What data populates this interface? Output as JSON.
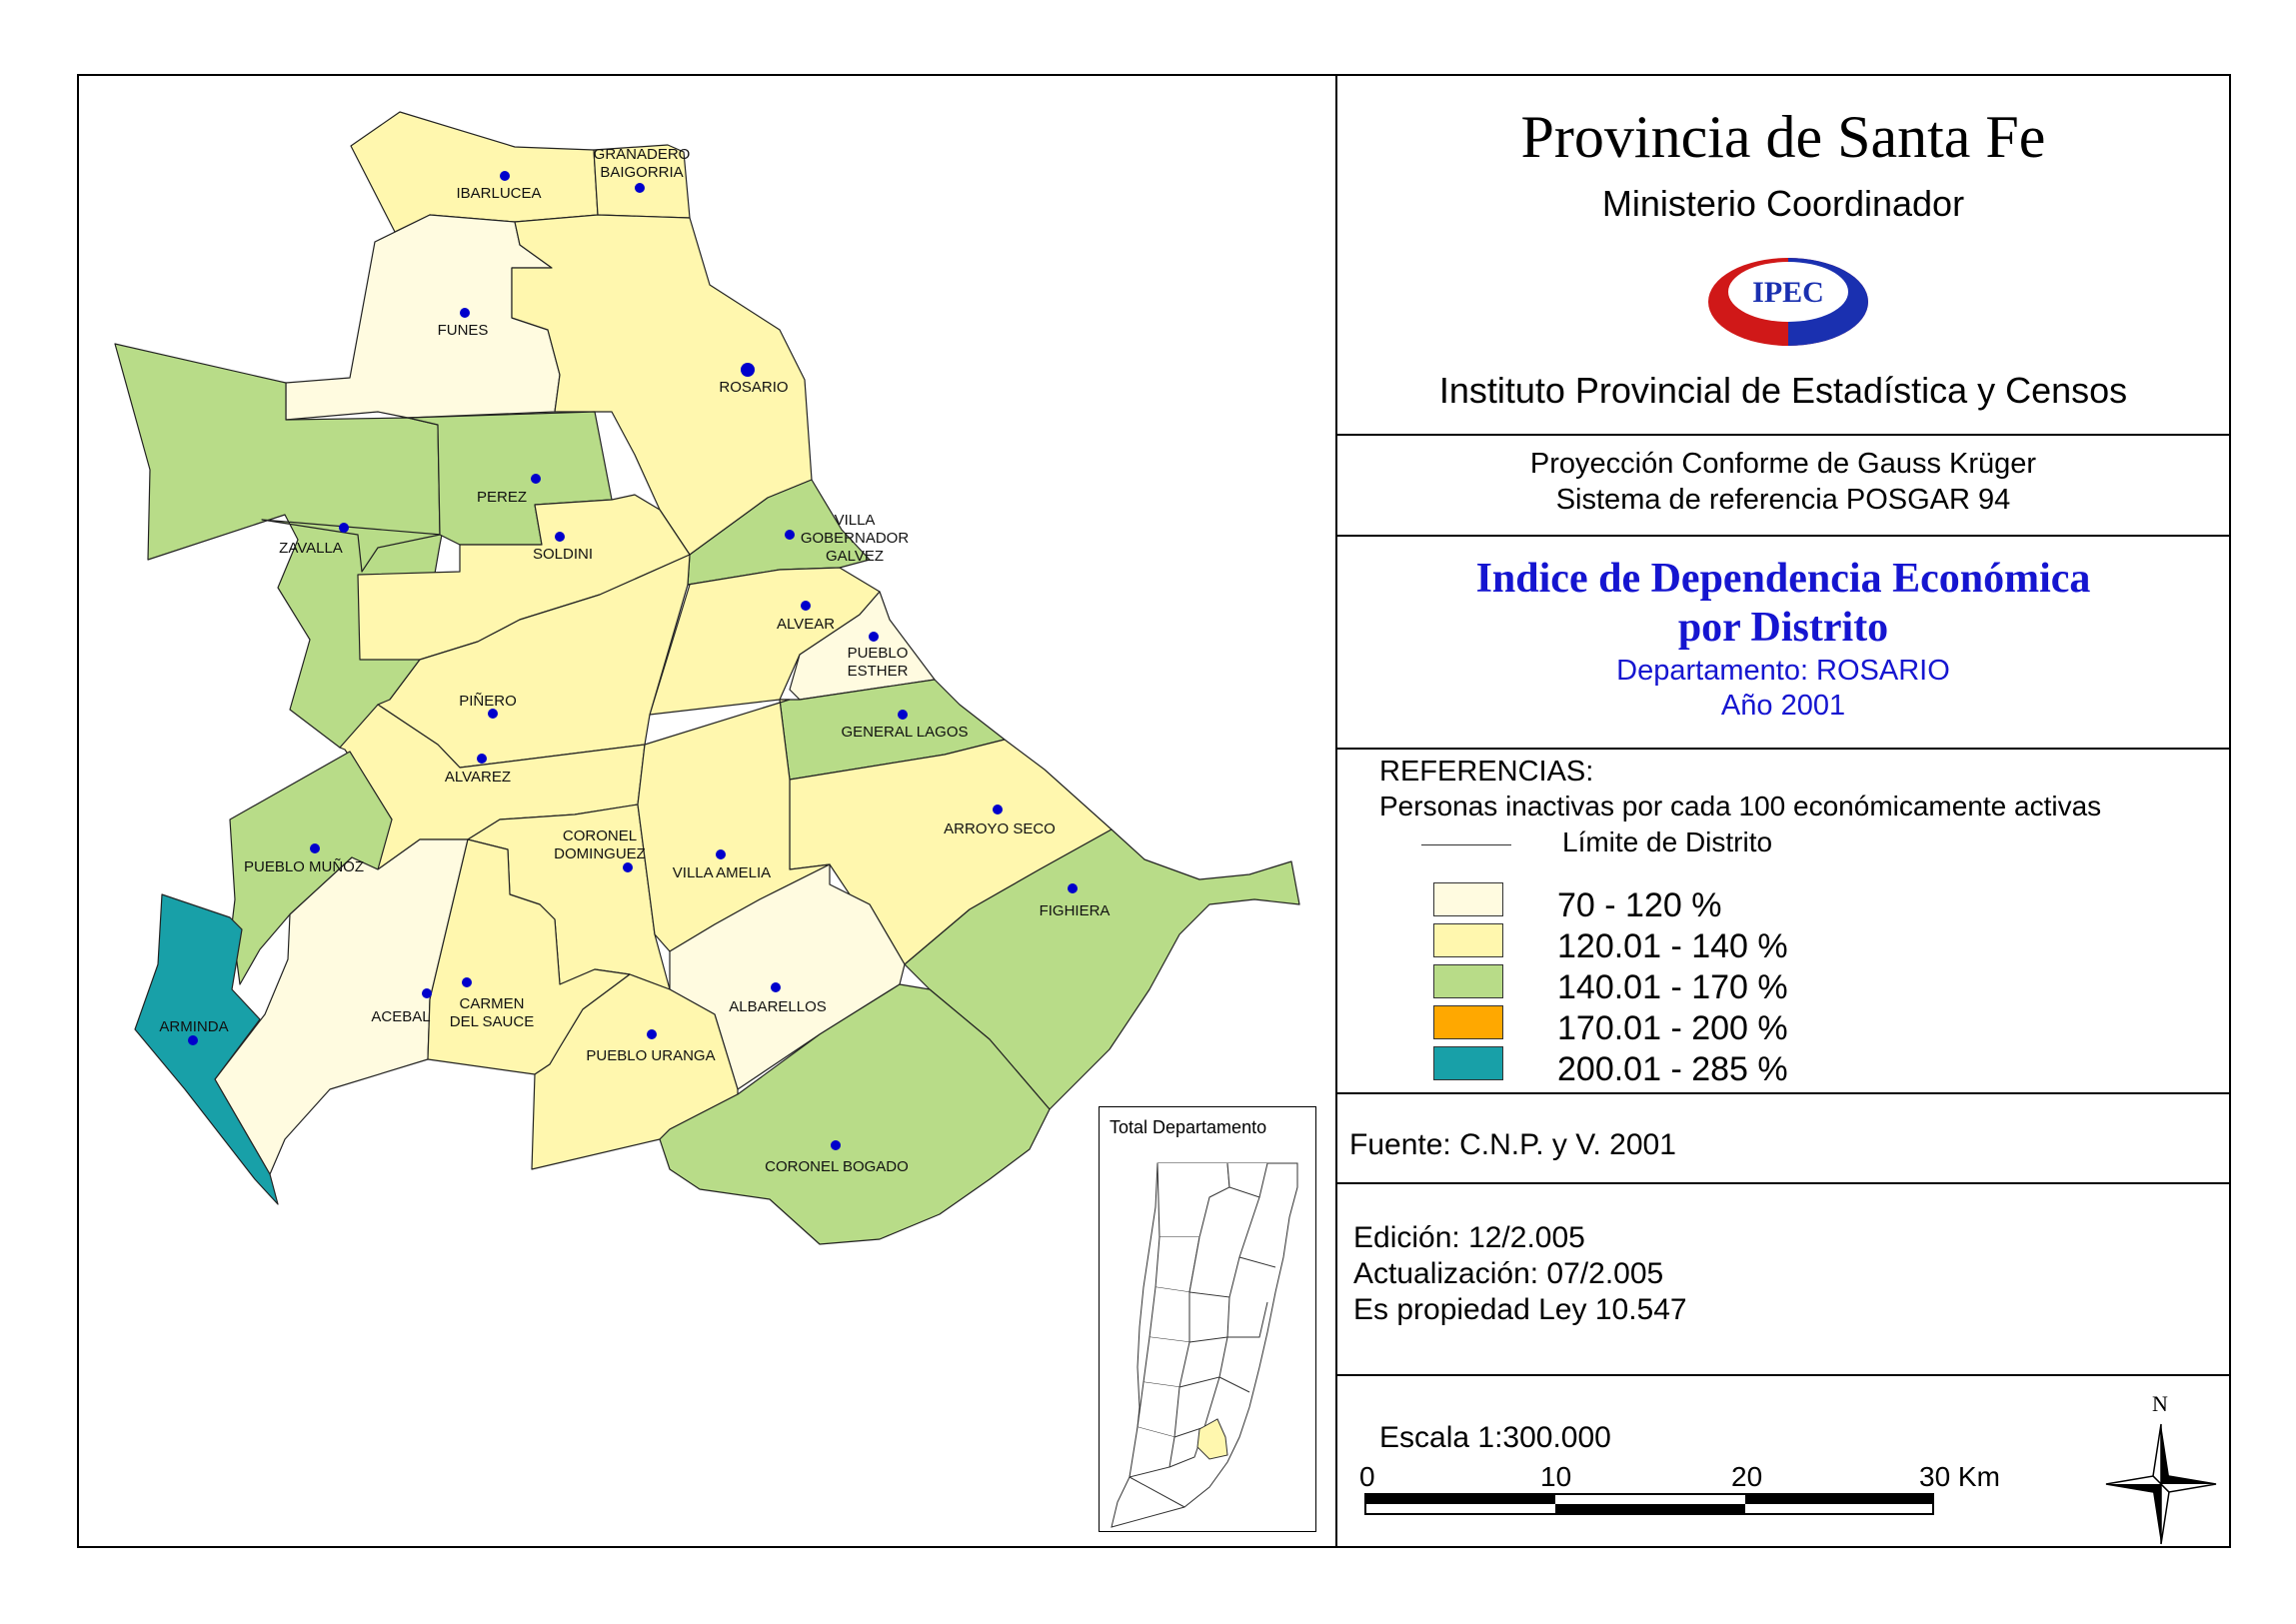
{
  "header": {
    "title": "Provincia de Santa Fe",
    "ministry": "Ministerio Coordinador",
    "logo_text": "IPEC",
    "institute": "Instituto Provincial de Estadística y Censos"
  },
  "projection": {
    "line1": "Proyección Conforme de Gauss Krüger",
    "line2": "Sistema de referencia POSGAR 94"
  },
  "map_title": {
    "line1": "Indice de Dependencia Económica",
    "line2": "por Distrito",
    "department": "Departamento:  ROSARIO",
    "year": "Año 2001"
  },
  "references": {
    "heading": "REFERENCIAS:",
    "subtitle": "Personas inactivas por cada 100 económicamente activas",
    "boundary_label": "Límite de  Distrito",
    "classes": [
      {
        "label": "70 - 120 %",
        "color": "#fffbe0"
      },
      {
        "label": "120.01 - 140 %",
        "color": "#fff7ae"
      },
      {
        "label": "140.01 - 170 %",
        "color": "#b8dc88"
      },
      {
        "label": "170.01 - 200 %",
        "color": "#ffa800"
      },
      {
        "label": "200.01 - 285 %",
        "color": "#18a0a8"
      }
    ]
  },
  "source": "Fuente:  C.N.P. y V. 2001",
  "edition": {
    "line1": "Edición:  12/2.005",
    "line2": "Actualización:  07/2.005",
    "line3": "Es propiedad Ley 10.547"
  },
  "scale": {
    "label": "Escala 1:300.000",
    "ticks": [
      "0",
      "10",
      "20",
      "30 Km"
    ]
  },
  "north_label": "N",
  "inset_title": "Total Departamento",
  "districts": [
    {
      "name": "IBARLUCEA",
      "class": 1
    },
    {
      "name": "GRANADERO BAIGORRIA",
      "line1": "GRANADERO",
      "line2": "BAIGORRIA",
      "class": 1
    },
    {
      "name": "FUNES",
      "class": 0
    },
    {
      "name": "ROSARIO",
      "class": 1
    },
    {
      "name": "ZAVALLA",
      "class": 2
    },
    {
      "name": "PEREZ",
      "class": 2
    },
    {
      "name": "SOLDINI",
      "class": 1
    },
    {
      "name": "VILLA GOBERNADOR GALVEZ",
      "line1": "VILLA",
      "line2": "GOBERNADOR",
      "line3": "GALVEZ",
      "class": 2
    },
    {
      "name": "ALVEAR",
      "class": 1
    },
    {
      "name": "PUEBLO ESTHER",
      "line1": "PUEBLO",
      "line2": "ESTHER",
      "class": 0
    },
    {
      "name": "PIÑERO",
      "class": 1
    },
    {
      "name": "GENERAL LAGOS",
      "class": 2
    },
    {
      "name": "ALVAREZ",
      "class": 1
    },
    {
      "name": "ARROYO SECO",
      "class": 1
    },
    {
      "name": "CORONEL DOMINGUEZ",
      "line1": "CORONEL",
      "line2": "DOMINGUEZ",
      "class": 1
    },
    {
      "name": "VILLA AMELIA",
      "class": 1
    },
    {
      "name": "PUEBLO MUÑOZ",
      "class": 2
    },
    {
      "name": "FIGHIERA",
      "class": 2
    },
    {
      "name": "ACEBAL",
      "class": 0
    },
    {
      "name": "CARMEN DEL SAUCE",
      "line1": "CARMEN",
      "line2": "DEL SAUCE",
      "class": 1
    },
    {
      "name": "ALBARELLOS",
      "class": 0
    },
    {
      "name": "ARMINDA",
      "class": 4
    },
    {
      "name": "PUEBLO URANGA",
      "class": 1
    },
    {
      "name": "CORONEL BOGADO",
      "class": 2
    }
  ]
}
